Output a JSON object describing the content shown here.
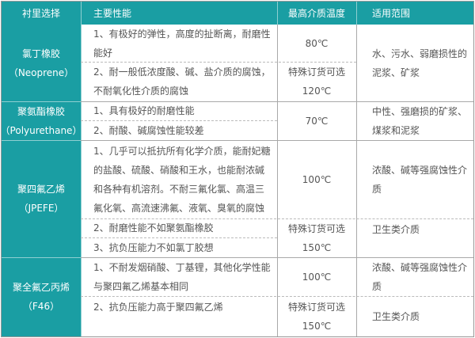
{
  "colors": {
    "header_bg": "#1a9ea3",
    "header_text": "#ffffff",
    "border": "#a9a9a9",
    "text": "#555555"
  },
  "header": [
    "衬里选择",
    "主要性能",
    "最高介质温度",
    "适用范围"
  ],
  "rows": [
    {
      "lining": [
        "氯丁橡胶",
        "（Neoprene）"
      ],
      "props": [
        [
          "1、有极好的弹性，高度的扯断离，耐磨性",
          "能好"
        ],
        [
          "2、耐一般低浓度酸、碱、盐介质的腐蚀，",
          "不耐氧化性介质的腐蚀"
        ]
      ],
      "temps": [
        [
          "80℃"
        ],
        [
          "特殊订货可选",
          "120℃"
        ]
      ],
      "scope": [
        [
          "水、污水、弱磨损性的",
          "泥浆、矿浆"
        ]
      ]
    },
    {
      "lining": [
        "聚氨酯橡胶",
        "（Polyurethane）"
      ],
      "props": [
        [
          "1、具有极好的耐磨性能"
        ],
        [
          "2、耐酸、碱腐蚀性能较差"
        ]
      ],
      "temps": [
        [
          "70℃"
        ]
      ],
      "scope": [
        [
          "中性、强磨损的矿浆、",
          "煤浆和泥浆"
        ]
      ]
    },
    {
      "lining": [
        "聚四氟乙烯",
        "（JPEFE）"
      ],
      "props": [
        [
          "1、几乎可以抵抗所有化学介质，能耐妃糖",
          "的盐酸、硫酸、硝酸和王水，也能耐浓碱",
          "和各种有机溶剂。不耐三氟化氯、高温三",
          "氟化氧、高流速沸氟、液氧、臭氧的腐蚀"
        ],
        [
          "2、耐磨性能不如聚氨酯橡胶"
        ],
        [
          "3、抗负压能力不如氯丁胶想"
        ]
      ],
      "temps": [
        [
          "100℃"
        ],
        [
          "特殊订货可选",
          "150℃"
        ]
      ],
      "scope": [
        [
          "浓酸、碱等强腐蚀性介",
          "质"
        ],
        [
          "卫生类介质"
        ]
      ]
    },
    {
      "lining": [
        "聚全氟乙丙烯",
        "（F46）"
      ],
      "props": [
        [
          "1、不耐发烟硝酸、丁基锂，其他化学性能",
          "与聚四氟乙烯基本相同"
        ],
        [
          "2、抗负压能力高于聚四氟乙烯"
        ]
      ],
      "temps": [
        [
          "100℃"
        ],
        [
          "特殊订货可选",
          "150℃"
        ]
      ],
      "scope": [
        [
          "浓酸、碱等强腐蚀性介",
          "质"
        ],
        [
          "卫生类介质"
        ]
      ]
    }
  ]
}
